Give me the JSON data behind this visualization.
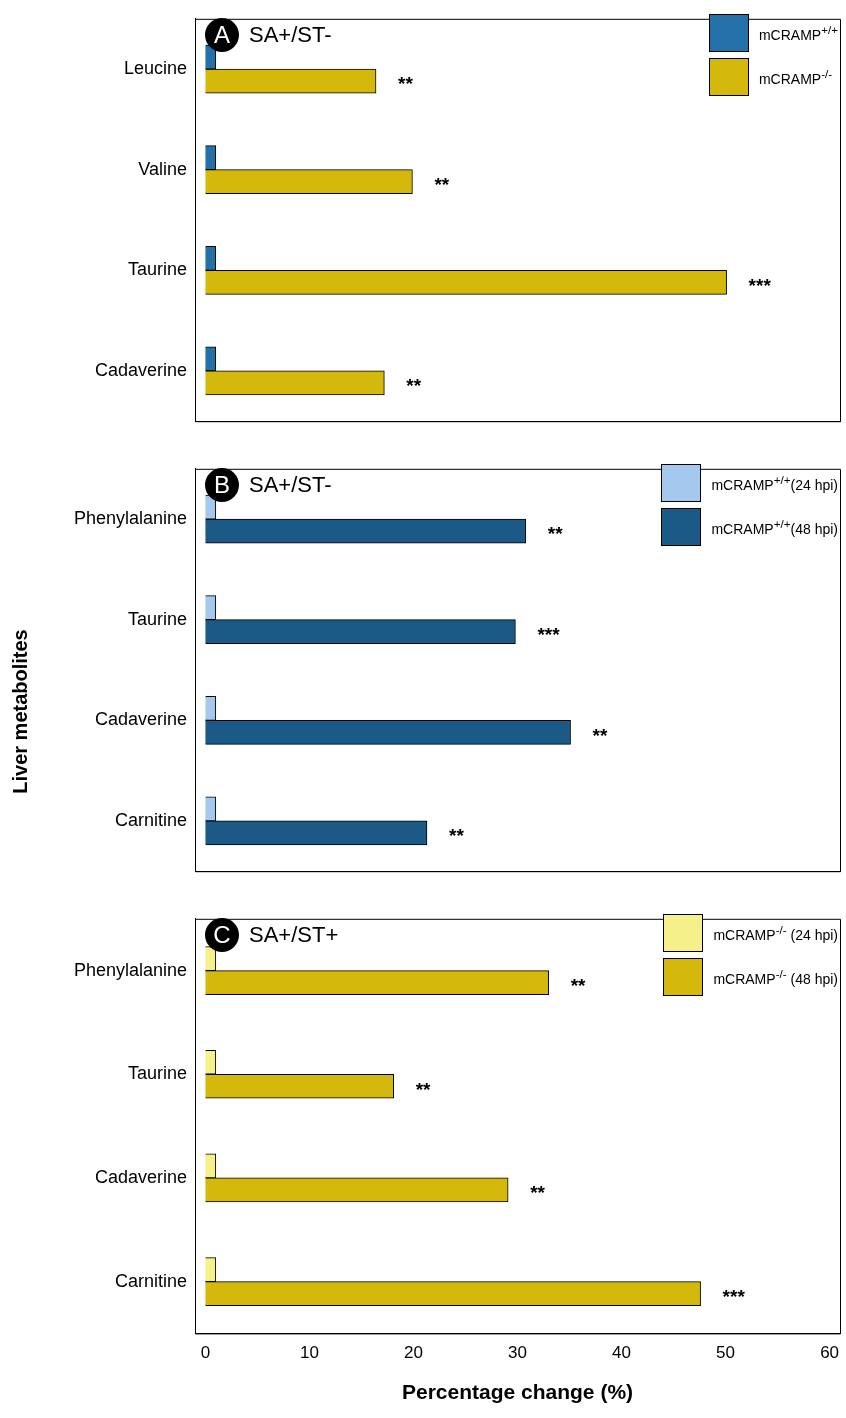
{
  "chart_data": [
    {
      "type": "bar",
      "orientation": "horizontal",
      "title": "A",
      "subtitle": "SA+/ST-",
      "categories": [
        "Leucine",
        "Valine",
        "Taurine",
        "Cadaverine"
      ],
      "series": [
        {
          "name": "mCRAMP$^{+/+}$",
          "color": "#2470a8",
          "values": [
            1,
            1,
            1,
            1
          ]
        },
        {
          "name": "mCRAMP$^{-/-}$",
          "color": "#d4b80c",
          "values": [
            16.4,
            19.9,
            50.1,
            17.2
          ]
        }
      ],
      "xlim": [
        -1,
        61
      ],
      "xticks": [
        0,
        10,
        20,
        30,
        40,
        50,
        60
      ],
      "tick_labels": "y",
      "legend": "top right",
      "annotations": [
        {
          "text": "**",
          "x": 16.4,
          "y": "Leucine"
        },
        {
          "text": "**",
          "x": 19.9,
          "y": "Valine"
        },
        {
          "text": "***",
          "x": 50.1,
          "y": "Taurine"
        },
        {
          "text": "**",
          "x": 17.2,
          "y": "Cadaverine"
        }
      ]
    },
    {
      "type": "bar",
      "orientation": "horizontal",
      "title": "B",
      "subtitle": "SA+/ST-",
      "ylabel": "Liver metabolites",
      "categories": [
        "Phenylalanine",
        "Taurine",
        "Cadaverine",
        "Carnitine"
      ],
      "series": [
        {
          "name": "mCRAMP$^{+/+}$(24 hpi)",
          "color": "#a5c8ee",
          "values": [
            1,
            1,
            1,
            1
          ]
        },
        {
          "name": "mCRAMP$^{+/+}$(48 hpi)",
          "color": "#1b5a87",
          "values": [
            30.8,
            29.8,
            35.1,
            21.3
          ]
        }
      ],
      "xlim": [
        -1,
        61
      ],
      "xticks": [
        0,
        10,
        20,
        30,
        40,
        50,
        60
      ],
      "tick_labels": "y",
      "legend": "top right",
      "annotations": [
        {
          "text": "**",
          "x": 30.8,
          "y": "Phenylalanine"
        },
        {
          "text": "***",
          "x": 29.8,
          "y": "Taurine"
        },
        {
          "text": "**",
          "x": 35.1,
          "y": "Cadaverine"
        },
        {
          "text": "**",
          "x": 21.3,
          "y": "Carnitine"
        }
      ]
    },
    {
      "type": "bar",
      "orientation": "horizontal",
      "title": "C",
      "subtitle": "SA+/ST+",
      "xlabel": "Percentage change (%)",
      "categories": [
        "Phenylalanine",
        "Taurine",
        "Cadaverine",
        "Carnitine"
      ],
      "series": [
        {
          "name": "mCRAMP$^{-/-}$ (24 hpi)",
          "color": "#f5f08a",
          "values": [
            1,
            1,
            1,
            1
          ]
        },
        {
          "name": "mCRAMP$^{-/-}$ (48 hpi)",
          "color": "#d4b80c",
          "values": [
            33.0,
            18.1,
            29.1,
            47.6
          ]
        }
      ],
      "xlim": [
        -1,
        61
      ],
      "xticks": [
        0,
        10,
        20,
        30,
        40,
        50,
        60
      ],
      "legend": "top right",
      "annotations": [
        {
          "text": "**",
          "x": 33.0,
          "y": "Phenylalanine"
        },
        {
          "text": "**",
          "x": 18.1,
          "y": "Taurine"
        },
        {
          "text": "**",
          "x": 29.1,
          "y": "Cadaverine"
        },
        {
          "text": "***",
          "x": 47.6,
          "y": "Carnitine"
        }
      ]
    }
  ]
}
